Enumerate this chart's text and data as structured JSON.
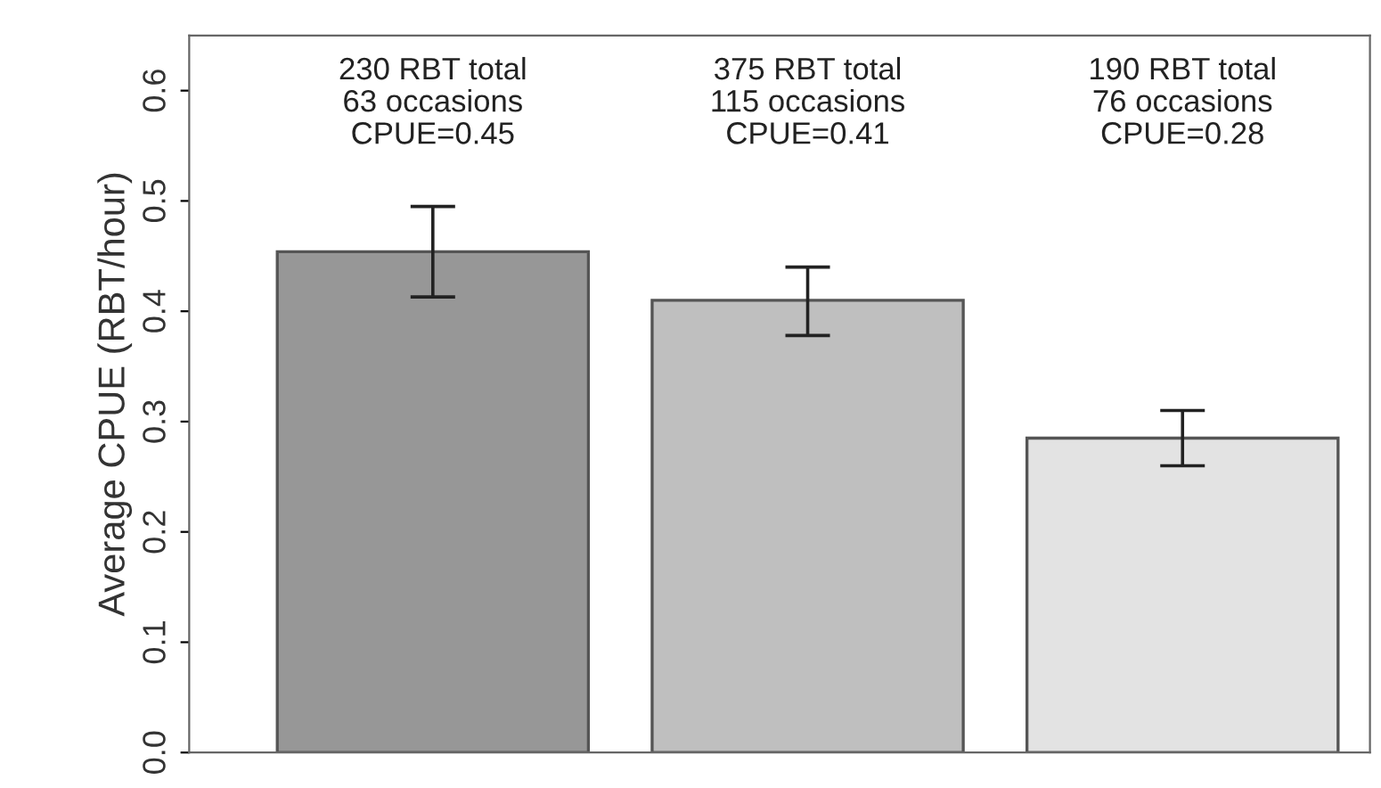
{
  "chart_data": {
    "type": "bar",
    "ylabel": "Average CPUE (RBT/hour)",
    "categories": [
      null,
      null,
      null
    ],
    "values": [
      0.454,
      0.41,
      0.285
    ],
    "colors": [
      "#979797",
      "#bfbfbf",
      "#e3e3e3"
    ],
    "errors": [
      [
        0.413,
        0.495
      ],
      [
        0.378,
        0.44
      ],
      [
        0.26,
        0.31
      ]
    ],
    "ylim": [
      0,
      0.65
    ],
    "yticks": [
      {
        "value": 0,
        "label": "0.0"
      },
      0.1,
      0.2,
      0.3,
      0.4,
      0.5,
      0.6
    ],
    "annotations": [
      "230 RBT total\n63 occasions\nCPUE=0.45",
      "375 RBT total\n115 occasions\nCPUE=0.41",
      "190 RBT total\n76 occasions\nCPUE=0.28"
    ],
    "grid": false,
    "legend": false
  }
}
